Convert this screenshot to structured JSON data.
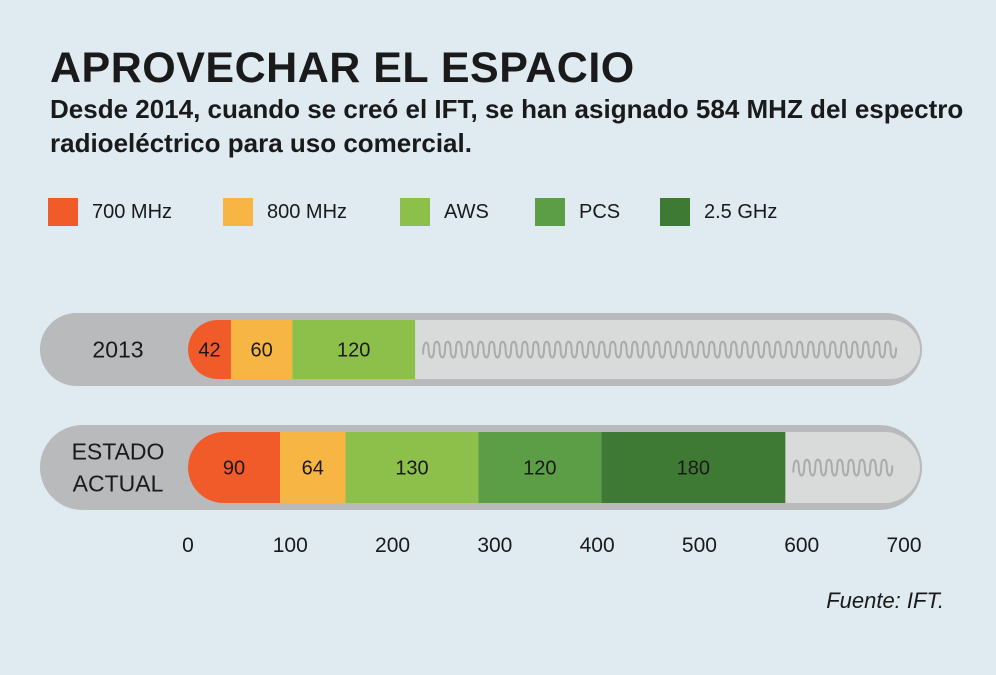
{
  "title": "APROVECHAR EL ESPACIO",
  "subtitle": "Desde 2014, cuando se creó el IFT, se han asignado 584 MHZ del espectro radioeléctrico para uso comercial.",
  "source": "Fuente: IFT.",
  "colors": {
    "700 MHz": "#f15a29",
    "800 MHz": "#f7b544",
    "AWS": "#8dc04a",
    "PCS": "#5c9e45",
    "2.5 GHz": "#3f7a35",
    "track_outer": "#b8babb",
    "track_inner": "#d9dada",
    "wave": "#a9abac"
  },
  "chart_data": {
    "type": "bar",
    "orientation": "horizontal",
    "stacked": true,
    "title": "APROVECHAR EL ESPACIO",
    "categories": [
      "2013",
      "ESTADO ACTUAL"
    ],
    "category_lines": [
      [
        "2013"
      ],
      [
        "ESTADO",
        "ACTUAL"
      ]
    ],
    "series": [
      {
        "name": "700 MHz",
        "values": [
          42,
          90
        ]
      },
      {
        "name": "800 MHz",
        "values": [
          60,
          64
        ]
      },
      {
        "name": "AWS",
        "values": [
          120,
          130
        ]
      },
      {
        "name": "PCS",
        "values": [
          0,
          120
        ]
      },
      {
        "name": "2.5 GHz",
        "values": [
          0,
          180
        ]
      }
    ],
    "xlim": [
      0,
      700
    ],
    "xticks": [
      0,
      100,
      200,
      300,
      400,
      500,
      600,
      700
    ],
    "xlabel": "",
    "ylabel": "",
    "legend": "top"
  }
}
